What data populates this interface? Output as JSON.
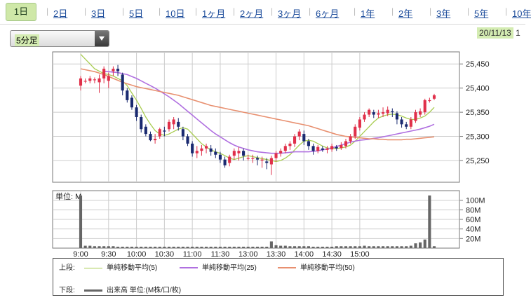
{
  "tabs": [
    {
      "label": "1日",
      "active": true
    },
    {
      "label": "2日"
    },
    {
      "label": "3日"
    },
    {
      "label": "5日"
    },
    {
      "label": "10日"
    },
    {
      "label": "1ヶ月"
    },
    {
      "label": "2ヶ月"
    },
    {
      "label": "3ヶ月"
    },
    {
      "label": "6ヶ月"
    },
    {
      "label": "1年"
    },
    {
      "label": "2年"
    },
    {
      "label": "3年"
    },
    {
      "label": "5年"
    },
    {
      "label": "10年"
    }
  ],
  "interval_select": {
    "value": "5分足"
  },
  "date_label": {
    "date": "20/11/13",
    "suffix": "1"
  },
  "colors": {
    "up": "#e0304a",
    "down": "#1a2a70",
    "ma5": "#a8cc50",
    "ma25": "#b070e0",
    "ma50": "#e89070",
    "volume": "#666666",
    "grid": "#cccccc"
  },
  "chart_data": {
    "type": "candlestick",
    "x_tick_labels": [
      "9:00",
      "9:30",
      "10:00",
      "10:30",
      "11:00",
      "11:30",
      "13:00",
      "13:30",
      "14:00",
      "14:30",
      "15:00"
    ],
    "price_ylim": [
      25205,
      25475
    ],
    "price_tick_labels": [
      "25,450",
      "25,400",
      "25,350",
      "25,300",
      "25,250"
    ],
    "price_ticks": [
      25450,
      25400,
      25350,
      25300,
      25250
    ],
    "volume_ylim": [
      0,
      120
    ],
    "volume_tick_labels": [
      "100M",
      "80M",
      "60M",
      "40M",
      "20M"
    ],
    "volume_ticks": [
      100,
      80,
      60,
      40,
      20
    ],
    "volume_unit_label": "単位: M",
    "candles": [
      [
        25405,
        25420,
        25395,
        25425
      ],
      [
        25415,
        25415,
        25410,
        25420
      ],
      [
        25415,
        25420,
        25410,
        25425
      ],
      [
        25418,
        25418,
        25410,
        25422
      ],
      [
        25412,
        25420,
        25390,
        25428
      ],
      [
        25420,
        25440,
        25410,
        25445
      ],
      [
        25415,
        25425,
        25400,
        25432
      ],
      [
        25435,
        25440,
        25425,
        25445
      ],
      [
        25440,
        25435,
        25425,
        25448
      ],
      [
        25428,
        25395,
        25385,
        25432
      ],
      [
        25395,
        25375,
        25370,
        25400
      ],
      [
        25380,
        25360,
        25355,
        25385
      ],
      [
        25360,
        25340,
        25332,
        25365
      ],
      [
        25340,
        25315,
        25308,
        25345
      ],
      [
        25320,
        25305,
        25300,
        25325
      ],
      [
        25305,
        25292,
        25290,
        25310
      ],
      [
        25292,
        25295,
        25285,
        25305
      ],
      [
        25300,
        25315,
        25295,
        25318
      ],
      [
        25312,
        25310,
        25300,
        25320
      ],
      [
        25315,
        25330,
        25310,
        25335
      ],
      [
        25325,
        25335,
        25315,
        25340
      ],
      [
        25330,
        25320,
        25312,
        25338
      ],
      [
        25315,
        25300,
        25292,
        25320
      ],
      [
        25300,
        25285,
        25280,
        25305
      ],
      [
        25285,
        25265,
        25258,
        25290
      ],
      [
        25265,
        25270,
        25255,
        25280
      ],
      [
        25270,
        25275,
        25260,
        25282
      ],
      [
        25275,
        25280,
        25265,
        25285
      ],
      [
        25275,
        25268,
        25260,
        25282
      ],
      [
        25268,
        25262,
        25255,
        25275
      ],
      [
        25262,
        25252,
        25245,
        25268
      ],
      [
        25252,
        25240,
        25235,
        25258
      ],
      [
        25245,
        25258,
        25238,
        25262
      ],
      [
        25260,
        25270,
        25252,
        25275
      ],
      [
        25265,
        25270,
        25250,
        25278
      ],
      [
        25270,
        25260,
        25250,
        25275
      ],
      [
        25255,
        25255,
        25250,
        25262
      ],
      [
        25255,
        25255,
        25245,
        25262
      ],
      [
        25255,
        25252,
        25240,
        25260
      ],
      [
        25250,
        25252,
        25235,
        25258
      ],
      [
        25248,
        25245,
        25232,
        25255
      ],
      [
        25242,
        25255,
        25220,
        25260
      ],
      [
        25255,
        25265,
        25248,
        25270
      ],
      [
        25265,
        25270,
        25258,
        25275
      ],
      [
        25270,
        25280,
        25265,
        25285
      ],
      [
        25280,
        25285,
        25272,
        25290
      ],
      [
        25285,
        25300,
        25278,
        25305
      ],
      [
        25300,
        25310,
        25292,
        25315
      ],
      [
        25305,
        25290,
        25282,
        25312
      ],
      [
        25290,
        25280,
        25272,
        25295
      ],
      [
        25280,
        25270,
        25262,
        25285
      ],
      [
        25270,
        25278,
        25265,
        25282
      ],
      [
        25275,
        25272,
        25268,
        25280
      ],
      [
        25272,
        25275,
        25265,
        25280
      ],
      [
        25273,
        25280,
        25268,
        25285
      ],
      [
        25278,
        25275,
        25270,
        25282
      ],
      [
        25276,
        25282,
        25272,
        25288
      ],
      [
        25280,
        25290,
        25275,
        25295
      ],
      [
        25290,
        25300,
        25285,
        25305
      ],
      [
        25300,
        25320,
        25295,
        25325
      ],
      [
        25318,
        25335,
        25312,
        25340
      ],
      [
        25335,
        25345,
        25330,
        25350
      ],
      [
        25345,
        25355,
        25340,
        25358
      ],
      [
        25350,
        25345,
        25338,
        25355
      ],
      [
        25345,
        25348,
        25338,
        25355
      ],
      [
        25347,
        25350,
        25340,
        25360
      ],
      [
        25348,
        25355,
        25342,
        25362
      ],
      [
        25352,
        25350,
        25340,
        25358
      ],
      [
        25348,
        25335,
        25325,
        25352
      ],
      [
        25335,
        25325,
        25318,
        25340
      ],
      [
        25325,
        25320,
        25315,
        25330
      ],
      [
        25320,
        25335,
        25315,
        25340
      ],
      [
        25332,
        25350,
        25328,
        25355
      ],
      [
        25345,
        25352,
        25340,
        25358
      ],
      [
        25350,
        25375,
        25345,
        25378
      ],
      [
        25375,
        25375,
        25370,
        25380
      ],
      [
        25378,
        25385,
        25375,
        25388
      ]
    ],
    "volume": [
      110,
      5,
      5,
      4,
      4,
      4,
      4,
      4,
      3,
      3,
      3,
      3,
      3,
      3,
      3,
      3,
      3,
      3,
      3,
      3,
      3,
      3,
      3,
      3,
      3,
      3,
      3,
      3,
      3,
      3,
      3,
      3,
      3,
      3,
      3,
      3,
      3,
      3,
      3,
      3,
      3,
      14,
      6,
      5,
      5,
      4,
      4,
      4,
      4,
      4,
      3,
      3,
      3,
      3,
      3,
      4,
      4,
      4,
      4,
      4,
      4,
      5,
      4,
      4,
      4,
      4,
      4,
      4,
      4,
      4,
      4,
      5,
      10,
      12,
      18,
      110,
      4
    ],
    "series": [
      {
        "name": "単純移動平均(5)",
        "values": [
          25470,
          25460,
          25450,
          25440,
          25435,
          25430,
          25428,
          25425,
          25420,
          25415,
          25405,
          25390,
          25375,
          25358,
          25340,
          25325,
          25312,
          25305,
          25302,
          25305,
          25310,
          25315,
          25318,
          25315,
          25305,
          25295,
          25285,
          25278,
          25272,
          25268,
          25265,
          25260,
          25255,
          25252,
          25255,
          25258,
          25260,
          25258,
          25256,
          25254,
          25252,
          25250,
          25248,
          25250,
          25255,
          25262,
          25272,
          25282,
          25290,
          25292,
          25290,
          25285,
          25280,
          25276,
          25275,
          25275,
          25276,
          25278,
          25282,
          25290,
          25300,
          25310,
          25320,
          25330,
          25338,
          25342,
          25345,
          25346,
          25345,
          25342,
          25338,
          25335,
          25335,
          25338,
          25342,
          25350,
          25360
        ]
      },
      {
        "name": "単純移動平均(25)",
        "values": [
          null,
          null,
          null,
          null,
          null,
          25435,
          25434,
          25433,
          25432,
          25430,
          25428,
          25424,
          25420,
          25415,
          25410,
          25405,
          25400,
          25394,
          25388,
          25382,
          25375,
          25368,
          25360,
          25352,
          25344,
          25336,
          25328,
          25320,
          25312,
          25305,
          25299,
          25293,
          25287,
          25282,
          25278,
          25275,
          25272,
          25270,
          25268,
          25267,
          25266,
          25265,
          25265,
          25265,
          25266,
          25267,
          25268,
          25268,
          25268,
          25268,
          25269,
          25270,
          25272,
          25274,
          25276,
          25279,
          25282,
          25285,
          25288,
          25290,
          25292,
          25293,
          25294,
          25296,
          25297,
          25299,
          25301,
          25303,
          25305,
          25307,
          25309,
          25311,
          25313,
          25315,
          25318,
          25321,
          25325
        ]
      },
      {
        "name": "単純移動平均(50)",
        "values": [
          25440,
          25438,
          25436,
          25434,
          25431,
          25428,
          25424,
          25420,
          25416,
          25412,
          25409,
          25406,
          25403,
          25401,
          25399,
          25397,
          25395,
          25393,
          25391,
          25389,
          25387,
          25385,
          25382,
          25379,
          25376,
          25373,
          25370,
          25367,
          25364,
          25362,
          25360,
          25358,
          25356,
          25354,
          25352,
          25350,
          25348,
          25346,
          25344,
          25342,
          25340,
          25338,
          25336,
          25334,
          25332,
          25330,
          25328,
          25326,
          25324,
          25322,
          25319,
          25316,
          25313,
          25310,
          25307,
          25304,
          25302,
          25300,
          25299,
          25298,
          25297,
          25296,
          25295,
          25295,
          25294,
          25294,
          25293,
          25293,
          25293,
          25293,
          25294,
          25294,
          25295,
          25296,
          25297,
          25298,
          25299
        ]
      }
    ]
  },
  "legend": {
    "upper_label": "上段:",
    "lower_label": "下段:",
    "ma5": "単純移動平均(5)",
    "ma25": "単純移動平均(25)",
    "ma50": "単純移動平均(50)",
    "volume": "出来高 単位:(M株/口/枚)"
  }
}
